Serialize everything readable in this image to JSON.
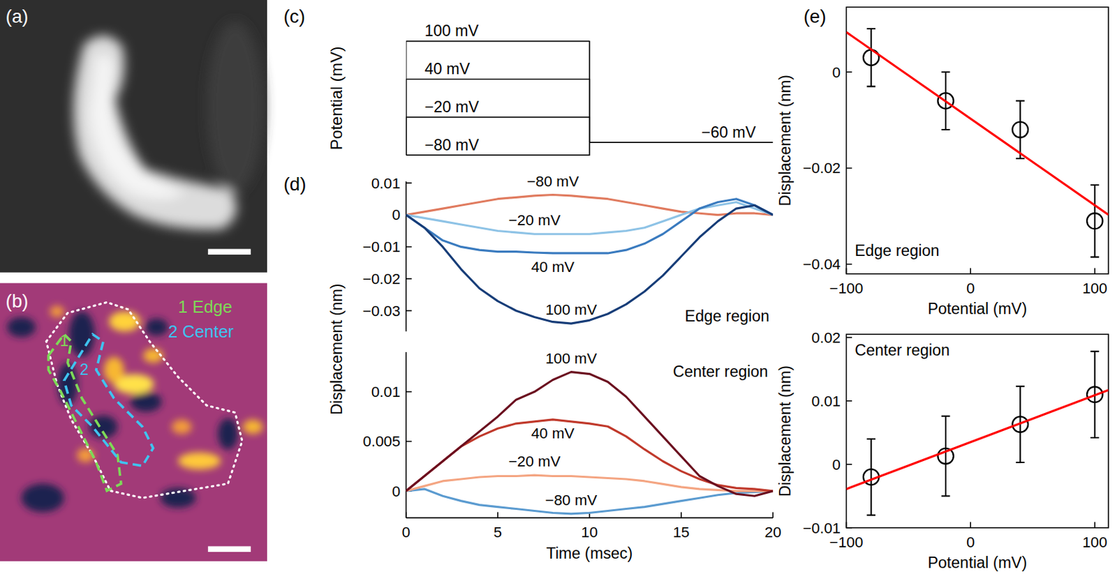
{
  "panel_labels": [
    "(a)",
    "(b)",
    "(c)",
    "(d)",
    "(e)"
  ],
  "image_b": {
    "legend": [
      {
        "label": "1 Edge",
        "color": "#7ed957"
      },
      {
        "label": "2 Center",
        "color": "#3fc3f0"
      }
    ],
    "region_labels": [
      {
        "label": "1",
        "color": "#7ed957"
      },
      {
        "label": "2",
        "color": "#3fc3f0"
      }
    ]
  },
  "chart_data": [
    {
      "type": "line",
      "y_label": "Potential (mV)",
      "xlim": [
        0,
        20
      ],
      "ylim": [
        -90,
        110
      ],
      "tick_labels": false,
      "color": "#000000",
      "series": [
        {
          "name": "100 mV",
          "x": [
            0,
            0,
            10,
            10
          ],
          "values": [
            -80,
            100,
            100,
            -60
          ]
        },
        {
          "name": "40 mV",
          "x": [
            0,
            0,
            10,
            10
          ],
          "values": [
            -80,
            40,
            40,
            -60
          ]
        },
        {
          "name": "−20 mV",
          "x": [
            0,
            0,
            10,
            10
          ],
          "values": [
            -80,
            -20,
            -20,
            -60
          ]
        },
        {
          "name": "−80 mV",
          "x": [
            0,
            0,
            10,
            10
          ],
          "values": [
            -80,
            -80,
            -80,
            -60
          ]
        },
        {
          "name": "−60 mV",
          "x": [
            10,
            20
          ],
          "values": [
            -60,
            -60
          ]
        }
      ]
    },
    {
      "type": "line",
      "y_label": "Displacement (nm)",
      "annotation": "Edge region",
      "tick_labels": "y",
      "x": [
        0,
        1,
        2,
        3,
        4,
        5,
        6,
        7,
        8,
        9,
        10,
        11,
        12,
        13,
        14,
        15,
        16,
        17,
        18,
        19,
        20
      ],
      "xlim": [
        0,
        20
      ],
      "ylim": [
        -0.0365,
        0.0105
      ],
      "yticks": [
        -0.03,
        -0.02,
        -0.01,
        0,
        0.01
      ],
      "series": [
        {
          "name": "−80 mV",
          "color": "#e07b5f",
          "values": [
            0,
            0.001,
            0.002,
            0.003,
            0.004,
            0.005,
            0.0055,
            0.006,
            0.0063,
            0.006,
            0.0055,
            0.005,
            0.004,
            0.003,
            0.002,
            0.001,
            0.0005,
            0,
            0.0005,
            0.0005,
            0
          ]
        },
        {
          "name": "−20 mV",
          "color": "#8ec3e6",
          "values": [
            0,
            -0.001,
            -0.002,
            -0.003,
            -0.004,
            -0.005,
            -0.0055,
            -0.006,
            -0.006,
            -0.006,
            -0.006,
            -0.0055,
            -0.005,
            -0.004,
            -0.002,
            0,
            0.002,
            0.003,
            0.004,
            0.002,
            0
          ]
        },
        {
          "name": "40 mV",
          "color": "#3a7bbf",
          "values": [
            0,
            -0.004,
            -0.008,
            -0.01,
            -0.011,
            -0.0115,
            -0.0115,
            -0.0118,
            -0.012,
            -0.012,
            -0.012,
            -0.012,
            -0.011,
            -0.009,
            -0.006,
            -0.002,
            0.002,
            0.004,
            0.005,
            0.003,
            0
          ]
        },
        {
          "name": "100 mV",
          "color": "#173d78",
          "values": [
            0,
            -0.004,
            -0.01,
            -0.017,
            -0.023,
            -0.027,
            -0.03,
            -0.032,
            -0.0335,
            -0.034,
            -0.033,
            -0.031,
            -0.028,
            -0.024,
            -0.019,
            -0.013,
            -0.007,
            -0.002,
            0.002,
            0.003,
            0
          ]
        }
      ]
    },
    {
      "type": "line",
      "x_label": "Time (msec)",
      "annotation": "Center region",
      "x": [
        0,
        1,
        2,
        3,
        4,
        5,
        6,
        7,
        8,
        9,
        10,
        11,
        12,
        13,
        14,
        15,
        16,
        17,
        18,
        19,
        20
      ],
      "xlim": [
        0,
        20
      ],
      "xticks": [
        0,
        5,
        10,
        15,
        20
      ],
      "ylim": [
        -0.0027,
        0.014
      ],
      "yticks": [
        0,
        0.005,
        0.01
      ],
      "series": [
        {
          "name": "−80 mV",
          "color": "#5b9bd0",
          "values": [
            0,
            0.0002,
            -0.0005,
            -0.001,
            -0.0014,
            -0.0016,
            -0.0018,
            -0.002,
            -0.0022,
            -0.0023,
            -0.0022,
            -0.002,
            -0.0018,
            -0.0016,
            -0.0013,
            -0.001,
            -0.0007,
            -0.0004,
            -0.0002,
            -0.0001,
            0
          ]
        },
        {
          "name": "−20 mV",
          "color": "#f4a582",
          "values": [
            0,
            0.0005,
            0.001,
            0.0012,
            0.0014,
            0.0015,
            0.0015,
            0.0016,
            0.0015,
            0.0015,
            0.0014,
            0.0013,
            0.0012,
            0.001,
            0.0007,
            0.0004,
            0.0002,
            0.0001,
            0,
            0,
            0
          ]
        },
        {
          "name": "40 mV",
          "color": "#c0392b",
          "values": [
            0,
            0.0015,
            0.003,
            0.0045,
            0.0055,
            0.0063,
            0.0068,
            0.007,
            0.0072,
            0.007,
            0.0068,
            0.0065,
            0.0055,
            0.0042,
            0.003,
            0.002,
            0.0012,
            0.0006,
            0.0003,
            0.0002,
            0
          ]
        },
        {
          "name": "100 mV",
          "color": "#6b0f1f",
          "values": [
            0,
            0.0015,
            0.003,
            0.0045,
            0.006,
            0.0075,
            0.0092,
            0.01,
            0.0112,
            0.012,
            0.0118,
            0.011,
            0.0095,
            0.0075,
            0.0055,
            0.0035,
            0.0015,
            0.0005,
            -0.0003,
            -0.0005,
            0
          ]
        }
      ]
    },
    {
      "type": "scatter",
      "x_label": "Potential (mV)",
      "y_label": "Displacement (nm)",
      "annotation": "Edge region",
      "x": [
        -80,
        -20,
        40,
        100
      ],
      "xlim": [
        -100,
        111
      ],
      "xticks": [
        -100,
        0,
        100
      ],
      "ylim": [
        -0.042,
        0.0135
      ],
      "yticks": [
        -0.04,
        -0.02,
        0
      ],
      "series": [
        {
          "type": "scatter",
          "marker": "circle",
          "color": "#000000",
          "values": [
            0.003,
            -0.006,
            -0.012,
            -0.031
          ],
          "errors": [
            0.006,
            0.006,
            0.006,
            0.0075
          ]
        },
        {
          "type": "line",
          "color": "#ff0000",
          "x": [
            -100,
            111
          ],
          "values": [
            0.0083,
            -0.0297
          ]
        }
      ]
    },
    {
      "type": "scatter",
      "x_label": "Potential (mV)",
      "y_label": "Displacement (nm)",
      "annotation": "Center region",
      "x": [
        -80,
        -20,
        40,
        100
      ],
      "xlim": [
        -100,
        111
      ],
      "xticks": [
        -100,
        0,
        100
      ],
      "ylim": [
        -0.01,
        0.0205
      ],
      "yticks": [
        -0.01,
        0,
        0.01,
        0.02
      ],
      "series": [
        {
          "type": "scatter",
          "marker": "circle",
          "color": "#000000",
          "values": [
            -0.002,
            0.0013,
            0.0063,
            0.011
          ],
          "errors": [
            0.006,
            0.0063,
            0.006,
            0.0068
          ]
        },
        {
          "type": "line",
          "color": "#ff0000",
          "x": [
            -100,
            111
          ],
          "values": [
            -0.0039,
            0.0117
          ]
        }
      ]
    }
  ]
}
